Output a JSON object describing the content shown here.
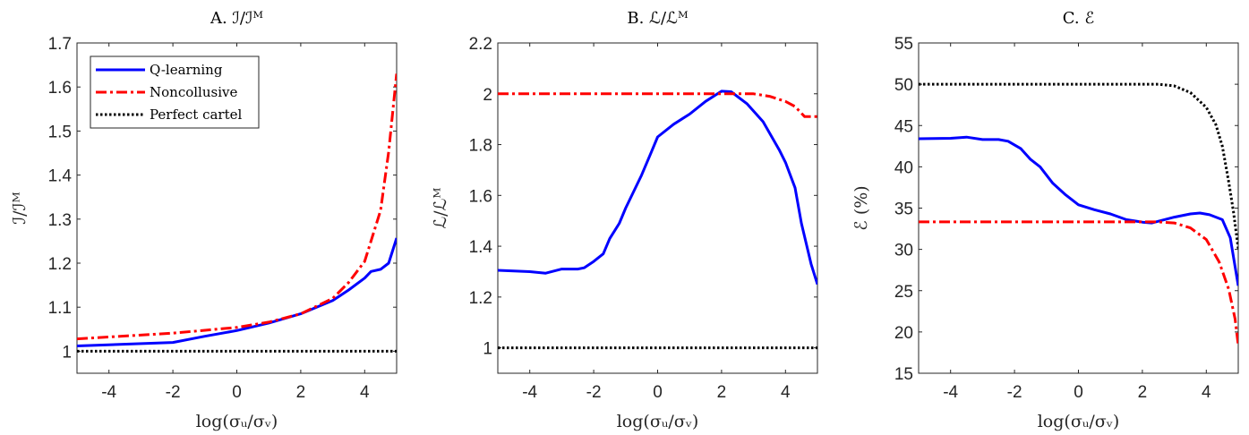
{
  "chart_data": [
    {
      "type": "line",
      "title": "A. ℐ/ℐᴹ",
      "xlabel": "log(σᵤ/σᵥ)",
      "ylabel": "ℐ/ℐᴹ",
      "xlim": [
        -5,
        5
      ],
      "ylim": [
        0.95,
        1.7
      ],
      "xticks": [
        -4,
        -2,
        0,
        2,
        4
      ],
      "yticks": [
        1,
        1.1,
        1.2,
        1.3,
        1.4,
        1.5,
        1.6,
        1.7
      ],
      "ytick_labels": [
        "1",
        "1.1",
        "1.2",
        "1.3",
        "1.4",
        "1.5",
        "1.6",
        "1.7"
      ],
      "grid": false,
      "legend": {
        "placement": "top-left",
        "entries": [
          "Q-learning",
          "Noncollusive",
          "Perfect cartel"
        ]
      },
      "series": [
        {
          "name": "Q-learning",
          "color": "#0000ff",
          "style": "solid",
          "x": [
            -5,
            -2,
            -1,
            0,
            1,
            2,
            3,
            3.5,
            4,
            4.2,
            4.5,
            4.75,
            5
          ],
          "y": [
            1.012,
            1.02,
            1.034,
            1.047,
            1.064,
            1.085,
            1.115,
            1.139,
            1.166,
            1.181,
            1.186,
            1.2,
            1.257
          ]
        },
        {
          "name": "Noncollusive",
          "color": "#ff0000",
          "style": "dashdot",
          "x": [
            -5,
            -2,
            0,
            1,
            2,
            3,
            3.5,
            4,
            4.5,
            4.75,
            5
          ],
          "y": [
            1.028,
            1.041,
            1.054,
            1.066,
            1.085,
            1.12,
            1.156,
            1.204,
            1.32,
            1.453,
            1.63
          ]
        },
        {
          "name": "Perfect cartel",
          "color": "#000000",
          "style": "dotted",
          "x": [
            -5,
            5
          ],
          "y": [
            1,
            1
          ]
        }
      ]
    },
    {
      "type": "line",
      "title": "B. ℒ/ℒᴹ",
      "xlabel": "log(σᵤ/σᵥ)",
      "ylabel": "ℒ/ℒᴹ",
      "xlim": [
        -5,
        5
      ],
      "ylim": [
        0.9,
        2.2
      ],
      "xticks": [
        -4,
        -2,
        0,
        2,
        4
      ],
      "yticks": [
        1,
        1.2,
        1.4,
        1.6,
        1.8,
        2,
        2.2
      ],
      "ytick_labels": [
        "1",
        "1.2",
        "1.4",
        "1.6",
        "1.8",
        "2",
        "2.2"
      ],
      "grid": false,
      "series": [
        {
          "name": "Q-learning",
          "color": "#0000ff",
          "style": "solid",
          "x": [
            -5,
            -4,
            -3.5,
            -3,
            -2.5,
            -2.3,
            -2,
            -1.7,
            -1.5,
            -1.2,
            -1,
            -0.5,
            -0.2,
            0,
            0.5,
            1,
            1.5,
            2,
            2.3,
            2.8,
            3.3,
            3.8,
            4,
            4.3,
            4.5,
            4.8,
            5
          ],
          "y": [
            1.305,
            1.3,
            1.294,
            1.31,
            1.31,
            1.315,
            1.34,
            1.37,
            1.43,
            1.49,
            1.55,
            1.68,
            1.77,
            1.83,
            1.88,
            1.92,
            1.97,
            2.01,
            2.008,
            1.96,
            1.89,
            1.78,
            1.73,
            1.63,
            1.49,
            1.33,
            1.25
          ]
        },
        {
          "name": "Noncollusive",
          "color": "#ff0000",
          "style": "dashdot",
          "x": [
            -5,
            3,
            3.5,
            4,
            4.3,
            4.6,
            5
          ],
          "y": [
            2,
            2,
            1.99,
            1.97,
            1.95,
            1.91,
            1.91
          ]
        },
        {
          "name": "Perfect cartel",
          "color": "#000000",
          "style": "dotted",
          "x": [
            -5,
            5
          ],
          "y": [
            1,
            1
          ]
        }
      ]
    },
    {
      "type": "line",
      "title": "C. ℰ",
      "xlabel": "log(σᵤ/σᵥ)",
      "ylabel": "ℰ (%)",
      "xlim": [
        -5,
        5
      ],
      "ylim": [
        15,
        55
      ],
      "xticks": [
        -4,
        -2,
        0,
        2,
        4
      ],
      "yticks": [
        15,
        20,
        25,
        30,
        35,
        40,
        45,
        50,
        55
      ],
      "ytick_labels": [
        "15",
        "20",
        "25",
        "30",
        "35",
        "40",
        "45",
        "50",
        "55"
      ],
      "grid": false,
      "series": [
        {
          "name": "Q-learning",
          "color": "#0000ff",
          "style": "solid",
          "x": [
            -5,
            -4,
            -3.5,
            -3,
            -2.5,
            -2.2,
            -1.8,
            -1.5,
            -1.2,
            -0.8,
            -0.4,
            0,
            0.5,
            1,
            1.5,
            2,
            2.3,
            3,
            3.5,
            3.8,
            4.1,
            4.5,
            4.75,
            5
          ],
          "y": [
            43.4,
            43.45,
            43.6,
            43.3,
            43.3,
            43.1,
            42.2,
            40.9,
            40,
            38,
            36.6,
            35.4,
            34.8,
            34.3,
            33.6,
            33.3,
            33.2,
            33.9,
            34.3,
            34.4,
            34.2,
            33.6,
            31.4,
            25.6
          ]
        },
        {
          "name": "Noncollusive",
          "color": "#ff0000",
          "style": "dashdot",
          "x": [
            -5,
            2.5,
            3,
            3.5,
            4,
            4.4,
            4.7,
            4.9,
            5
          ],
          "y": [
            33.33,
            33.33,
            33.2,
            32.6,
            31.2,
            28.5,
            25.2,
            21.6,
            18.4
          ]
        },
        {
          "name": "Perfect cartel",
          "color": "#000000",
          "style": "dotted",
          "x": [
            -5,
            2.5,
            3,
            3.5,
            4,
            4.3,
            4.5,
            4.7,
            4.85,
            5
          ],
          "y": [
            50,
            50,
            49.8,
            49.0,
            47.2,
            45.1,
            42.5,
            38.2,
            34.6,
            30.1
          ]
        }
      ]
    }
  ]
}
